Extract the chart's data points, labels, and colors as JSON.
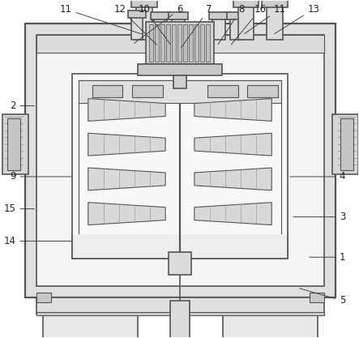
{
  "bg_color": "#ffffff",
  "lc": "#555555",
  "lc_dark": "#333333",
  "fill_outer": "#e8e8e8",
  "fill_inner": "#f2f2f2",
  "fill_white": "#fafafa",
  "fill_gray": "#d0d0d0",
  "fill_dgray": "#b8b8b8",
  "fill_hatch": "#c8c8c8",
  "blade_fill": "#d8d8d8",
  "blade_hatch": "#aaaaaa"
}
